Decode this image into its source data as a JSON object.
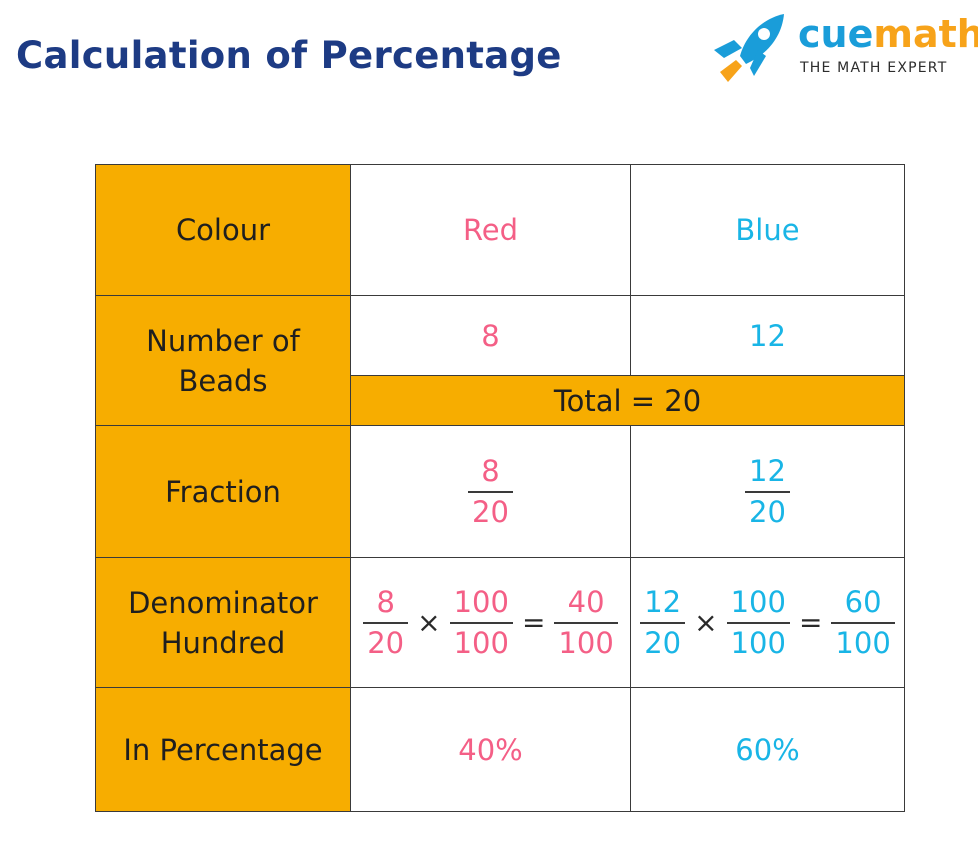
{
  "header": {
    "title": "Calculation of Percentage"
  },
  "logo": {
    "name_cue": "cue",
    "name_math": "math",
    "tagline": "THE MATH EXPERT",
    "icon": "rocket-icon"
  },
  "colors": {
    "header_fill": "#f7ad00",
    "red_text": "#f45f86",
    "blue_text": "#19b5e6",
    "title": "#1d3b84"
  },
  "table": {
    "rows": {
      "colour": {
        "label": "Colour",
        "red": "Red",
        "blue": "Blue"
      },
      "beads": {
        "label": "Number of Beads",
        "red": "8",
        "blue": "12",
        "total": "Total = 20"
      },
      "fraction": {
        "label": "Fraction",
        "red": {
          "num": "8",
          "den": "20"
        },
        "blue": {
          "num": "12",
          "den": "20"
        }
      },
      "denominator": {
        "label": "Denominator Hundred",
        "times": "×",
        "equals": "=",
        "red": {
          "a_num": "8",
          "a_den": "20",
          "b_num": "100",
          "b_den": "100",
          "c_num": "40",
          "c_den": "100"
        },
        "blue": {
          "a_num": "12",
          "a_den": "20",
          "b_num": "100",
          "b_den": "100",
          "c_num": "60",
          "c_den": "100"
        }
      },
      "percentage": {
        "label": "In Percentage",
        "red": "40%",
        "blue": "60%"
      }
    }
  }
}
